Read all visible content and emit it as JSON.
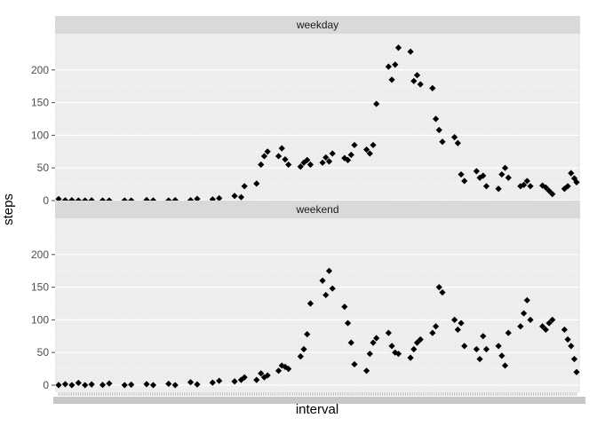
{
  "chart_data": {
    "type": "scatter",
    "xlabel": "interval",
    "ylabel": "steps",
    "ylim": [
      0,
      250
    ],
    "yticks": [
      0,
      50,
      100,
      150,
      200
    ],
    "x_domain": [
      0,
      2355
    ],
    "grid": true,
    "legend": "none",
    "colors": {
      "panel_background": "#ebebeb",
      "strip_background": "#d9d9d9",
      "grid_major": "#ffffff",
      "point": "#000000"
    },
    "panels": [
      {
        "label": "weekday",
        "points": [
          [
            0,
            2.3
          ],
          [
            30,
            0.3
          ],
          [
            60,
            0.5
          ],
          [
            90,
            0.1
          ],
          [
            120,
            0.1
          ],
          [
            150,
            0.4
          ],
          [
            200,
            0.1
          ],
          [
            230,
            0.1
          ],
          [
            300,
            0.1
          ],
          [
            330,
            0.1
          ],
          [
            400,
            0.8
          ],
          [
            430,
            0.2
          ],
          [
            500,
            0.1
          ],
          [
            530,
            0.6
          ],
          [
            600,
            0.5
          ],
          [
            630,
            2.5
          ],
          [
            700,
            1.8
          ],
          [
            730,
            3.5
          ],
          [
            800,
            7.1
          ],
          [
            830,
            5.2
          ],
          [
            845,
            22
          ],
          [
            900,
            26
          ],
          [
            920,
            55
          ],
          [
            935,
            68
          ],
          [
            950,
            75
          ],
          [
            1000,
            68
          ],
          [
            1015,
            80
          ],
          [
            1030,
            63
          ],
          [
            1045,
            55
          ],
          [
            1100,
            52
          ],
          [
            1115,
            58
          ],
          [
            1130,
            62
          ],
          [
            1145,
            55
          ],
          [
            1200,
            58
          ],
          [
            1215,
            66
          ],
          [
            1230,
            60
          ],
          [
            1245,
            72
          ],
          [
            1300,
            65
          ],
          [
            1315,
            62
          ],
          [
            1330,
            70
          ],
          [
            1345,
            85
          ],
          [
            1400,
            78
          ],
          [
            1415,
            72
          ],
          [
            1430,
            85
          ],
          [
            1445,
            148
          ],
          [
            1500,
            205
          ],
          [
            1515,
            185
          ],
          [
            1530,
            208
          ],
          [
            1545,
            234
          ],
          [
            1600,
            228
          ],
          [
            1615,
            183
          ],
          [
            1630,
            192
          ],
          [
            1645,
            178
          ],
          [
            1700,
            172
          ],
          [
            1715,
            125
          ],
          [
            1730,
            108
          ],
          [
            1745,
            90
          ],
          [
            1800,
            97
          ],
          [
            1815,
            88
          ],
          [
            1830,
            40
          ],
          [
            1845,
            30
          ],
          [
            1900,
            45
          ],
          [
            1915,
            35
          ],
          [
            1930,
            38
          ],
          [
            1945,
            22
          ],
          [
            2000,
            18
          ],
          [
            2015,
            40
          ],
          [
            2030,
            50
          ],
          [
            2045,
            35
          ],
          [
            2100,
            22
          ],
          [
            2115,
            24
          ],
          [
            2130,
            30
          ],
          [
            2145,
            22
          ],
          [
            2200,
            23
          ],
          [
            2215,
            20
          ],
          [
            2230,
            15
          ],
          [
            2245,
            10
          ],
          [
            2300,
            18
          ],
          [
            2315,
            22
          ],
          [
            2330,
            42
          ],
          [
            2345,
            34
          ],
          [
            2355,
            28
          ]
        ]
      },
      {
        "label": "weekend",
        "points": [
          [
            0,
            0.2
          ],
          [
            30,
            1.5
          ],
          [
            60,
            0.1
          ],
          [
            90,
            3.5
          ],
          [
            120,
            0.1
          ],
          [
            150,
            1.2
          ],
          [
            200,
            0.4
          ],
          [
            230,
            2.6
          ],
          [
            300,
            0.1
          ],
          [
            330,
            0.8
          ],
          [
            400,
            1.5
          ],
          [
            430,
            0.1
          ],
          [
            500,
            2.1
          ],
          [
            530,
            0.1
          ],
          [
            600,
            4.5
          ],
          [
            630,
            1.2
          ],
          [
            700,
            3.9
          ],
          [
            730,
            6.7
          ],
          [
            800,
            5.8
          ],
          [
            830,
            8.1
          ],
          [
            845,
            12
          ],
          [
            900,
            8
          ],
          [
            920,
            18
          ],
          [
            935,
            12
          ],
          [
            950,
            15
          ],
          [
            1000,
            22
          ],
          [
            1015,
            30
          ],
          [
            1030,
            28
          ],
          [
            1045,
            25
          ],
          [
            1100,
            44
          ],
          [
            1115,
            55
          ],
          [
            1130,
            78
          ],
          [
            1145,
            125
          ],
          [
            1200,
            160
          ],
          [
            1215,
            138
          ],
          [
            1230,
            175
          ],
          [
            1245,
            148
          ],
          [
            1300,
            120
          ],
          [
            1315,
            95
          ],
          [
            1330,
            65
          ],
          [
            1345,
            32
          ],
          [
            1400,
            22
          ],
          [
            1415,
            48
          ],
          [
            1430,
            65
          ],
          [
            1445,
            72
          ],
          [
            1500,
            80
          ],
          [
            1515,
            60
          ],
          [
            1530,
            50
          ],
          [
            1545,
            48
          ],
          [
            1600,
            42
          ],
          [
            1615,
            55
          ],
          [
            1630,
            65
          ],
          [
            1645,
            70
          ],
          [
            1700,
            80
          ],
          [
            1715,
            90
          ],
          [
            1730,
            150
          ],
          [
            1745,
            142
          ],
          [
            1800,
            100
          ],
          [
            1815,
            85
          ],
          [
            1830,
            95
          ],
          [
            1845,
            60
          ],
          [
            1900,
            55
          ],
          [
            1915,
            40
          ],
          [
            1930,
            75
          ],
          [
            1945,
            55
          ],
          [
            2000,
            60
          ],
          [
            2015,
            45
          ],
          [
            2030,
            30
          ],
          [
            2045,
            80
          ],
          [
            2100,
            90
          ],
          [
            2115,
            110
          ],
          [
            2130,
            130
          ],
          [
            2145,
            100
          ],
          [
            2200,
            90
          ],
          [
            2215,
            85
          ],
          [
            2230,
            95
          ],
          [
            2245,
            100
          ],
          [
            2300,
            85
          ],
          [
            2315,
            70
          ],
          [
            2330,
            60
          ],
          [
            2345,
            40
          ],
          [
            2355,
            20
          ]
        ]
      }
    ]
  }
}
